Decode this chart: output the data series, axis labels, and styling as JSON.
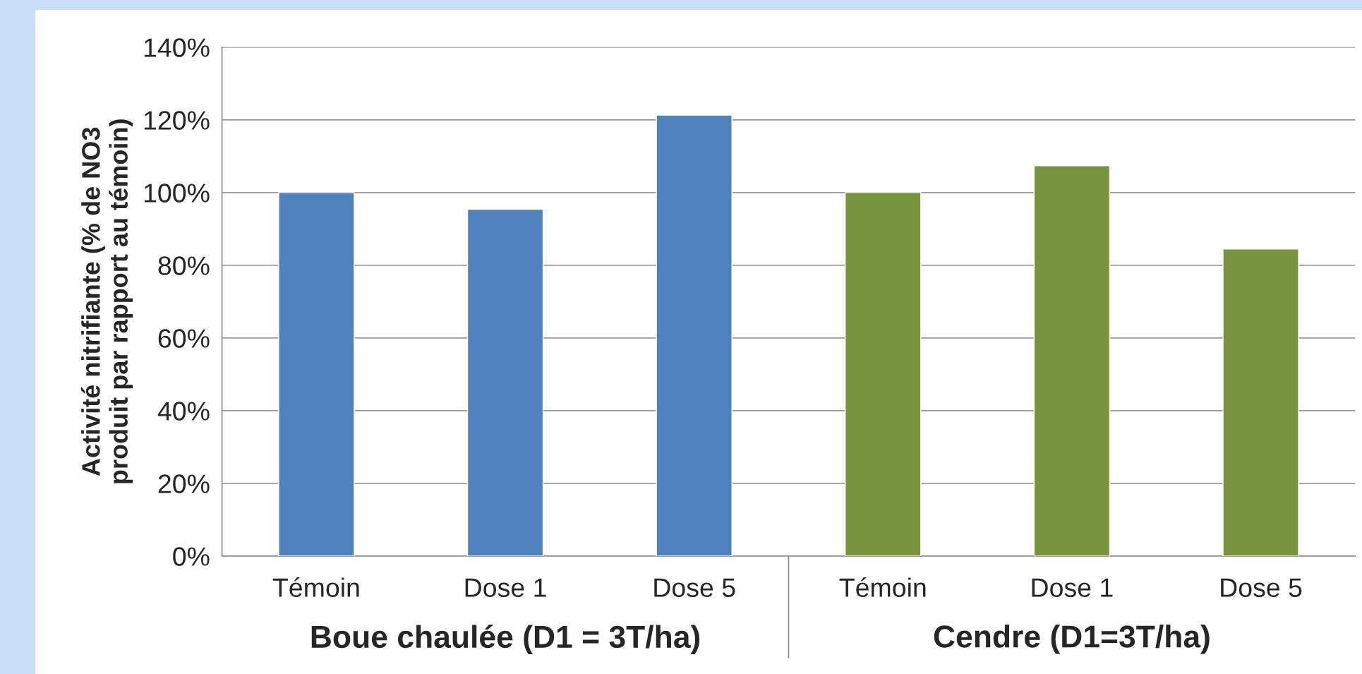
{
  "chart_data": {
    "type": "bar",
    "ylabel": "Activité nitrifiante (% de NO3\nproduit par rapport au témoin)",
    "categories": [
      "Témoin",
      "Dose 1",
      "Dose 5",
      "Témoin",
      "Dose 1",
      "Dose 5"
    ],
    "values": [
      100,
      95.4,
      121.3,
      100,
      107.4,
      84.5
    ],
    "colors": [
      "#4f81bd",
      "#4f81bd",
      "#4f81bd",
      "#77933c",
      "#77933c",
      "#77933c"
    ],
    "ylim": [
      0,
      140
    ],
    "yticks": [
      {
        "value": 0,
        "label": "0%"
      },
      {
        "value": 20,
        "label": "20%"
      },
      {
        "value": 40,
        "label": "40%"
      },
      {
        "value": 60,
        "label": "60%"
      },
      {
        "value": 80,
        "label": "80%"
      },
      {
        "value": 100,
        "label": "100%"
      },
      {
        "value": 120,
        "label": "120%"
      },
      {
        "value": 140,
        "label": "140%"
      }
    ],
    "grid": "y",
    "annotations": [
      "Boue chaulée (D1 = 3T/ha)",
      "Cendre (D1=3T/ha)"
    ]
  }
}
